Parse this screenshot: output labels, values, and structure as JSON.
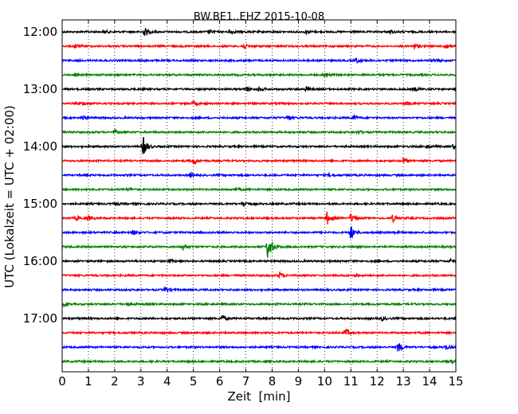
{
  "chart_data": {
    "type": "line",
    "title": "BW.BE1..EHZ 2015-10-08",
    "xlabel": "Zeit  [min]",
    "ylabel": "UTC (Lokalzeit = UTC + 02:00)",
    "xlim": [
      0,
      15
    ],
    "x_ticks": [
      "0",
      "1",
      "2",
      "3",
      "4",
      "5",
      "6",
      "7",
      "8",
      "9",
      "10",
      "11",
      "12",
      "13",
      "14",
      "15"
    ],
    "y_ticks": [
      "12:00",
      "13:00",
      "14:00",
      "15:00",
      "16:00",
      "17:00"
    ],
    "grid": "vertical dotted at each minute",
    "trace_colors": [
      "#000000",
      "#ff0000",
      "#0000ff",
      "#008000"
    ],
    "traces": [
      {
        "start": "12:00",
        "events": [
          [
            1.6,
            0.25
          ],
          [
            3.15,
            0.6
          ],
          [
            5.6,
            0.25
          ],
          [
            6.4,
            0.3
          ],
          [
            9.3,
            0.3
          ],
          [
            12.5,
            0.2
          ]
        ]
      },
      {
        "start": "12:15",
        "events": [
          [
            0.5,
            0.35
          ],
          [
            6.9,
            0.4
          ],
          [
            13.4,
            0.45
          ],
          [
            14.6,
            0.45
          ]
        ]
      },
      {
        "start": "12:30",
        "events": [
          [
            11.2,
            0.35
          ],
          [
            14.2,
            0.3
          ]
        ]
      },
      {
        "start": "12:45",
        "events": [
          [
            10.0,
            0.3
          ]
        ]
      },
      {
        "start": "13:00",
        "events": [
          [
            7.0,
            0.4
          ],
          [
            7.5,
            0.3
          ],
          [
            9.3,
            0.3
          ],
          [
            13.4,
            0.3
          ]
        ]
      },
      {
        "start": "13:15",
        "events": [
          [
            0.8,
            0.3
          ],
          [
            5.0,
            0.35
          ],
          [
            13.1,
            0.25
          ]
        ]
      },
      {
        "start": "13:30",
        "events": [
          [
            0.8,
            0.3
          ],
          [
            8.6,
            0.4
          ],
          [
            11.1,
            0.35
          ]
        ]
      },
      {
        "start": "13:45",
        "events": [
          [
            2.0,
            0.25
          ],
          [
            11.3,
            0.25
          ]
        ]
      },
      {
        "start": "14:00",
        "events": [
          [
            3.1,
            1.35
          ],
          [
            13.9,
            0.25
          ],
          [
            14.9,
            0.3
          ]
        ]
      },
      {
        "start": "14:15",
        "events": [
          [
            5.0,
            0.55
          ],
          [
            13.0,
            0.4
          ]
        ]
      },
      {
        "start": "14:30",
        "events": [
          [
            4.9,
            0.3
          ],
          [
            10.2,
            0.25
          ]
        ]
      },
      {
        "start": "14:45",
        "events": [
          [
            2.5,
            0.2
          ],
          [
            6.6,
            0.2
          ]
        ]
      },
      {
        "start": "15:00",
        "events": [
          [
            6.9,
            0.45
          ],
          [
            2.0,
            0.2
          ]
        ]
      },
      {
        "start": "15:15",
        "events": [
          [
            0.55,
            0.3
          ],
          [
            1.0,
            0.3
          ],
          [
            10.1,
            0.85
          ],
          [
            11.0,
            0.6
          ],
          [
            12.6,
            0.5
          ]
        ]
      },
      {
        "start": "15:30",
        "events": [
          [
            2.7,
            0.3
          ],
          [
            11.0,
            1.0
          ],
          [
            12.7,
            0.2
          ]
        ]
      },
      {
        "start": "15:45",
        "events": [
          [
            4.6,
            0.45
          ],
          [
            7.85,
            2.0
          ]
        ]
      },
      {
        "start": "16:00",
        "events": [
          [
            4.1,
            0.2
          ],
          [
            14.8,
            0.2
          ]
        ]
      },
      {
        "start": "16:15",
        "events": [
          [
            8.3,
            0.45
          ],
          [
            11.2,
            0.2
          ]
        ]
      },
      {
        "start": "16:30",
        "events": [
          [
            3.95,
            0.45
          ]
        ]
      },
      {
        "start": "16:45",
        "events": [
          [
            0.1,
            0.3
          ],
          [
            2.5,
            0.2
          ]
        ]
      },
      {
        "start": "17:00",
        "events": [
          [
            6.1,
            0.4
          ],
          [
            12.2,
            0.25
          ]
        ]
      },
      {
        "start": "17:15",
        "events": [
          [
            10.8,
            0.55
          ]
        ]
      },
      {
        "start": "17:30",
        "events": [
          [
            12.8,
            0.75
          ],
          [
            14.6,
            0.35
          ]
        ]
      },
      {
        "start": "17:45",
        "events": [
          [
            14.8,
            0.2
          ]
        ]
      }
    ]
  }
}
